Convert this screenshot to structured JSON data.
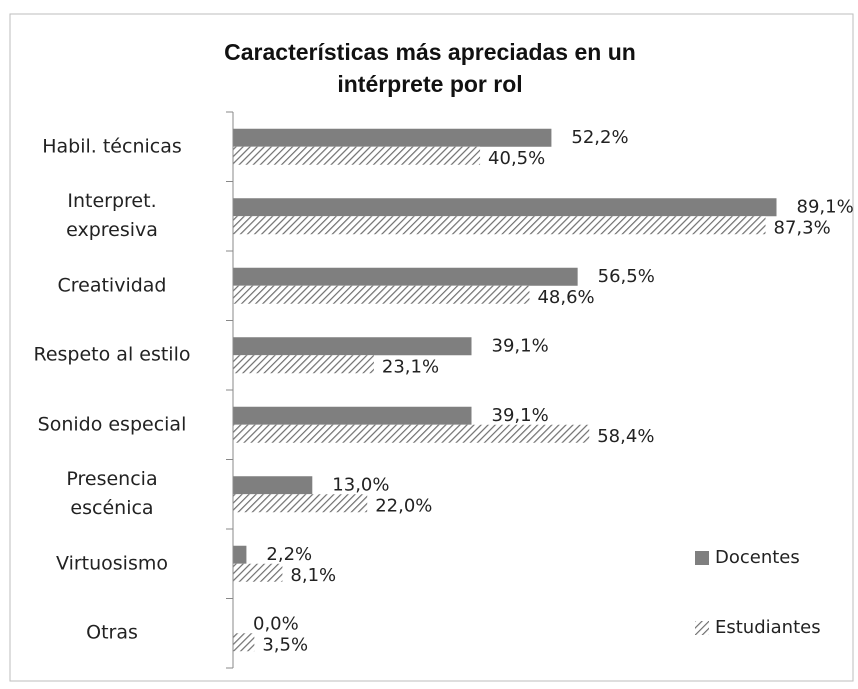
{
  "chart_data": {
    "type": "hbar",
    "title": "Características más apreciadas en un\nintérprete por rol",
    "categories": [
      "Habil. técnicas",
      "Interpret.\nexpresiva",
      "Creatividad",
      "Respeto al estilo",
      "Sonido especial",
      "Presencia\nescénica",
      "Virtuosismo",
      "Otras"
    ],
    "series": [
      {
        "name": "Docentes",
        "color": "#7f7f7f",
        "hatch": false,
        "values": [
          52.2,
          89.1,
          56.5,
          39.1,
          39.1,
          13.0,
          2.2,
          0.0
        ],
        "value_labels": [
          "52,2%",
          "89,1%",
          "56,5%",
          "39,1%",
          "39,1%",
          "13,0%",
          "2,2%",
          "0,0%"
        ]
      },
      {
        "name": "Estudiantes",
        "color": "#7f7f7f",
        "hatch": true,
        "values": [
          40.5,
          87.3,
          48.6,
          23.1,
          58.4,
          22.0,
          8.1,
          3.5
        ],
        "value_labels": [
          "40,5%",
          "87,3%",
          "48,6%",
          "23,1%",
          "58,4%",
          "22,0%",
          "8,1%",
          "3,5%"
        ]
      }
    ],
    "xlim": [
      0,
      90
    ],
    "legend": "right"
  }
}
